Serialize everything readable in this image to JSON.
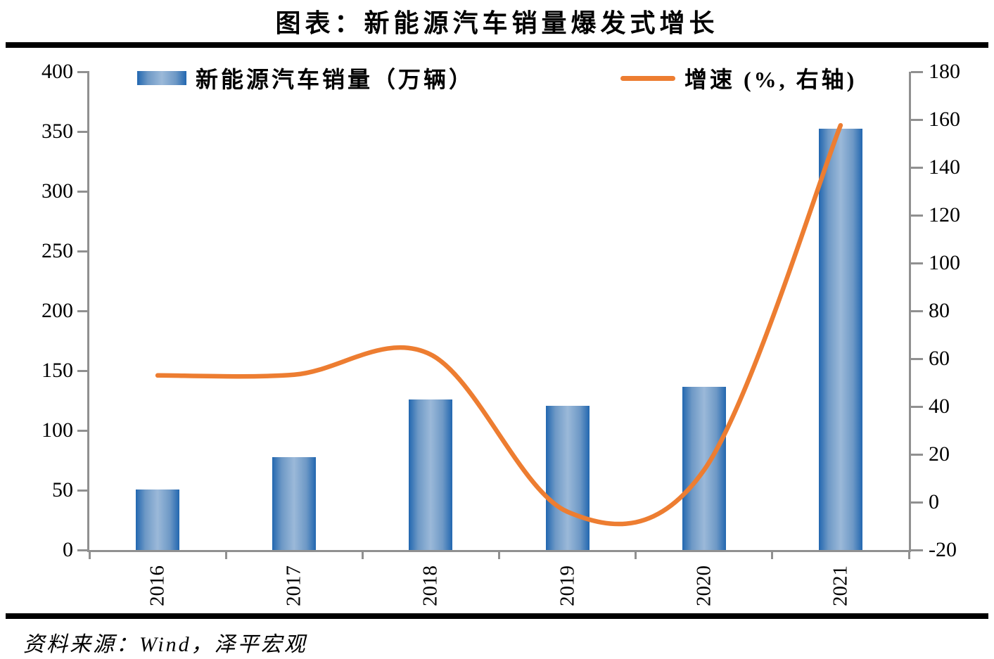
{
  "title": "图表：新能源汽车销量爆发式增长",
  "source": "资料来源：Wind，泽平宏观",
  "legend": {
    "bar_label": "新能源汽车销量（万辆）",
    "line_label": "增速 (%, 右轴)"
  },
  "colors": {
    "bar_edge": "#2267B0",
    "bar_mid": "#9BB9D9",
    "line": "#ED7D31",
    "axis_gray": "#909090",
    "rule_black": "#000000"
  },
  "chart_data": {
    "type": "bar",
    "subtype": "bar+line combo, dual axis",
    "title": "图表：新能源汽车销量爆发式增长",
    "categories": [
      "2016",
      "2017",
      "2018",
      "2019",
      "2020",
      "2021"
    ],
    "series": [
      {
        "name": "新能源汽车销量（万辆）",
        "type": "bar",
        "axis": "left",
        "values": [
          50.7,
          77.7,
          125.6,
          120.6,
          136.7,
          352.1
        ]
      },
      {
        "name": "增速 (%, 右轴)",
        "type": "line",
        "axis": "right",
        "smooth": true,
        "values": [
          53.0,
          53.3,
          61.7,
          -4.0,
          13.4,
          157.6
        ]
      }
    ],
    "left_axis": {
      "min": 0,
      "max": 400,
      "step": 50,
      "ticks": [
        "400",
        "350",
        "300",
        "250",
        "200",
        "150",
        "100",
        "50",
        "0"
      ]
    },
    "right_axis": {
      "min": -20,
      "max": 180,
      "step": 20,
      "ticks": [
        "180",
        "160",
        "140",
        "120",
        "100",
        "80",
        "60",
        "40",
        "20",
        "0",
        "-20"
      ]
    },
    "grid": false,
    "legend_position": "top"
  }
}
